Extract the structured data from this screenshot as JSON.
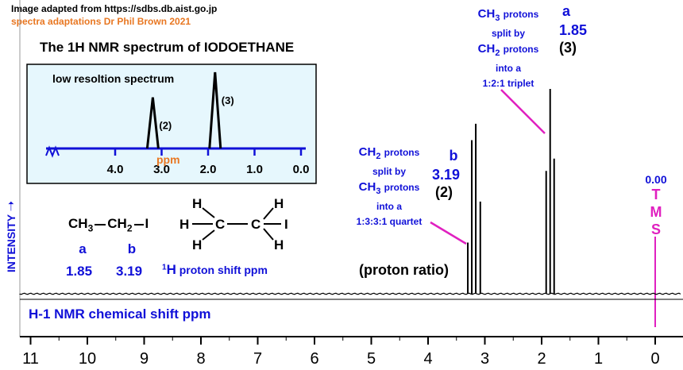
{
  "credits": {
    "source": "Image adapted from https://sdbs.db.aist.go.jp",
    "adaptation": "spectra adaptations Dr Phil Brown 2021"
  },
  "title": "The 1H  NMR spectrum of  IODOETHANE",
  "inset": {
    "title": "low resoltion spectrum",
    "ppm_label": "ppm",
    "ticks": [
      "4.0",
      "3.0",
      "2.0",
      "1.0",
      "0.0"
    ],
    "peak_labels": [
      "(2)",
      "(3)"
    ]
  },
  "structure": {
    "condensed": {
      "ch3": "CH",
      "ch3_sub": "3",
      "ch2": "CH",
      "ch2_sub": "2",
      "i": "I"
    },
    "letters": [
      "a",
      "b"
    ],
    "shifts": [
      "1.85",
      "3.19"
    ],
    "shift_caption_super": "1",
    "shift_caption_H": "H",
    "shift_caption_rest": "proton shift  ppm",
    "displayed": {
      "H": "H",
      "C": "C",
      "I": "I"
    }
  },
  "annotations": {
    "ch3": {
      "l1a": "CH",
      "l1sub": "3",
      "l1b": "protons",
      "l2": "split by",
      "l3a": "CH",
      "l3sub": "2",
      "l3b": "protons",
      "l4": "into a",
      "l5": "1:2:1 triplet"
    },
    "peak_a": {
      "letter": "a",
      "shift": "1.85",
      "ratio": "(3)"
    },
    "ch2": {
      "l1a": "CH",
      "l1sub": "2",
      "l1b": "protons",
      "l2": "split by",
      "l3a": "CH",
      "l3sub": "3",
      "l3b": "protons",
      "l4": "into a",
      "l5": "1:3:3:1 quartet"
    },
    "peak_b": {
      "letter": "b",
      "shift": "3.19",
      "ratio": "(2)"
    },
    "proton_ratio": "(proton ratio)",
    "tms": {
      "shift": "0.00",
      "letters": [
        "T",
        "M",
        "S"
      ]
    }
  },
  "y_axis_label": "INTENSITY",
  "x_axis_title": "H-1 NMR chemical shift  ppm",
  "colors": {
    "blue_text": "#1010d8",
    "orange_text": "#e87722",
    "magenta": "#e020c0",
    "inset_bg": "#e6f7fd",
    "axis_blue": "#1010d8"
  },
  "chart_data": {
    "type": "line",
    "xlabel": "H-1 NMR chemical shift  ppm",
    "ylabel": "INTENSITY",
    "xlim": [
      11,
      0
    ],
    "xticks": [
      11,
      10,
      9,
      8,
      7,
      6,
      5,
      4,
      3,
      2,
      1,
      0
    ],
    "peaks": [
      {
        "shift": 3.3,
        "height": 0.25
      },
      {
        "shift": 3.23,
        "height": 0.75
      },
      {
        "shift": 3.16,
        "height": 0.83
      },
      {
        "shift": 3.08,
        "height": 0.45
      },
      {
        "shift": 1.92,
        "height": 0.6
      },
      {
        "shift": 1.85,
        "height": 1.0
      },
      {
        "shift": 1.78,
        "height": 0.66
      }
    ],
    "inset": {
      "title": "low resoltion spectrum",
      "xlim": [
        4.5,
        0
      ],
      "xticks": [
        4.0,
        3.0,
        2.0,
        1.0,
        0.0
      ],
      "peaks": [
        {
          "shift": 3.19,
          "height": 0.67,
          "label": "(2)"
        },
        {
          "shift": 1.85,
          "height": 1.0,
          "label": "(3)"
        }
      ]
    }
  }
}
